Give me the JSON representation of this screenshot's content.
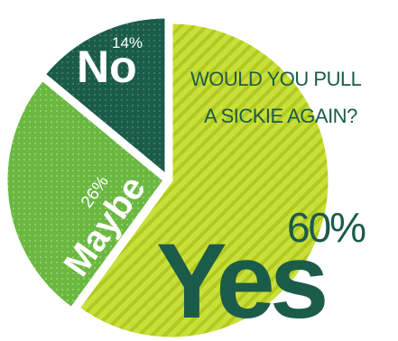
{
  "chart_data": {
    "type": "pie",
    "title": "WOULD YOU PULL A SICKIE AGAIN?",
    "title_lines": [
      "WOULD YOU PULL",
      "A SICKIE AGAIN?"
    ],
    "slices": [
      {
        "label": "Yes",
        "pct_label": "60%",
        "value": 60,
        "color": "#c9df3a",
        "stripe": "#b2ca1f"
      },
      {
        "label": "Maybe",
        "pct_label": "26%",
        "value": 26,
        "color": "#6ab840",
        "dots": "#9fd47e"
      },
      {
        "label": "No",
        "pct_label": "14%",
        "value": 14,
        "color": "#1b5b4a",
        "dots": "#4f8f78"
      }
    ],
    "label_color": "#1b5b4a"
  }
}
